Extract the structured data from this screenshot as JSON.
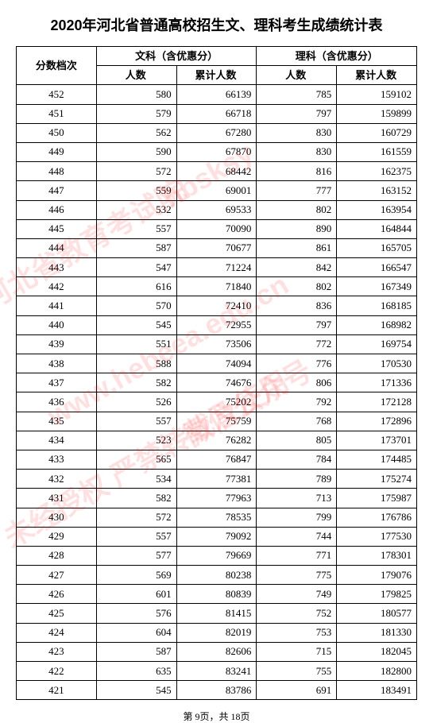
{
  "title": "2020年河北省普通高校招生文、理科考生成绩统计表",
  "header": {
    "score_col": "分数档次",
    "wenke": "文科（含优惠分）",
    "like": "理科（含优惠分）",
    "count": "人数",
    "cumulative": "累计人数"
  },
  "columns": [
    "分数档次",
    "文科人数",
    "文科累计人数",
    "理科人数",
    "理科累计人数"
  ],
  "rows": [
    [
      452,
      580,
      66139,
      785,
      159102
    ],
    [
      451,
      579,
      66718,
      797,
      159899
    ],
    [
      450,
      562,
      67280,
      830,
      160729
    ],
    [
      449,
      590,
      67870,
      830,
      161559
    ],
    [
      448,
      572,
      68442,
      816,
      162375
    ],
    [
      447,
      559,
      69001,
      777,
      163152
    ],
    [
      446,
      532,
      69533,
      802,
      163954
    ],
    [
      445,
      557,
      70090,
      890,
      164844
    ],
    [
      444,
      587,
      70677,
      861,
      165705
    ],
    [
      443,
      547,
      71224,
      842,
      166547
    ],
    [
      442,
      616,
      71840,
      802,
      167349
    ],
    [
      441,
      570,
      72410,
      836,
      168185
    ],
    [
      440,
      545,
      72955,
      797,
      168982
    ],
    [
      439,
      551,
      73506,
      772,
      169754
    ],
    [
      438,
      588,
      74094,
      776,
      170530
    ],
    [
      437,
      582,
      74676,
      806,
      171336
    ],
    [
      436,
      526,
      75202,
      792,
      172128
    ],
    [
      435,
      557,
      75759,
      768,
      172896
    ],
    [
      434,
      523,
      76282,
      805,
      173701
    ],
    [
      433,
      565,
      76847,
      784,
      174485
    ],
    [
      432,
      534,
      77381,
      789,
      175274
    ],
    [
      431,
      582,
      77963,
      713,
      175987
    ],
    [
      430,
      572,
      78535,
      799,
      176786
    ],
    [
      429,
      557,
      79092,
      744,
      177530
    ],
    [
      428,
      577,
      79669,
      771,
      178301
    ],
    [
      427,
      569,
      80238,
      775,
      179076
    ],
    [
      426,
      601,
      80839,
      749,
      179825
    ],
    [
      425,
      576,
      81415,
      752,
      180577
    ],
    [
      424,
      604,
      82019,
      753,
      181330
    ],
    [
      423,
      587,
      82606,
      715,
      182045
    ],
    [
      422,
      635,
      83241,
      755,
      182800
    ],
    [
      421,
      545,
      83786,
      691,
      183491
    ]
  ],
  "footer": "第 9页，共 18页",
  "watermarks": {
    "wm1": "河北省教育考试院",
    "wm2": "www.hebeea.edu.cn",
    "wm3": "hbsksy",
    "wm4": "未经授权 严禁转载及使用",
    "wm5": "微信公众号",
    "wm6": "hbsksy"
  },
  "style": {
    "title_fontsize": 18,
    "table_fontsize": 13,
    "footer_fontsize": 12,
    "border_color": "#000000",
    "background_color": "#ffffff",
    "watermark_color": "rgba(255,0,0,0.12)",
    "watermark_rotation": -30
  }
}
